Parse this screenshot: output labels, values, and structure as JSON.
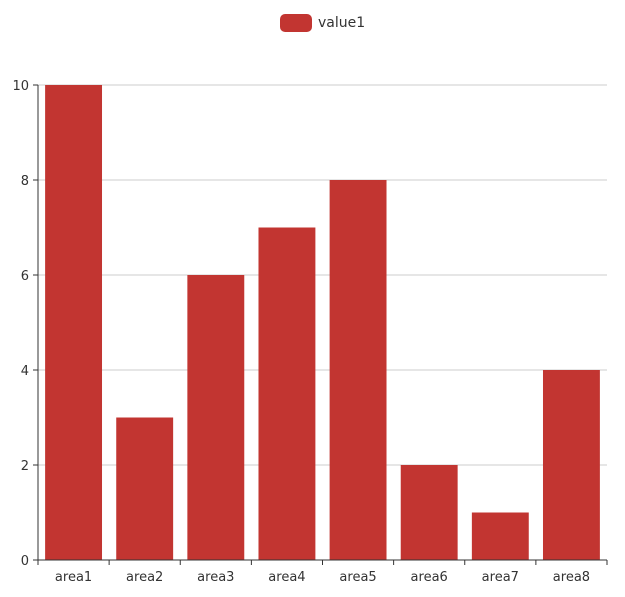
{
  "legend": {
    "label": "value1",
    "color": "#c23531"
  },
  "colors": {
    "bar": "#c23531",
    "axis": "#333333",
    "grid": "#cccccc",
    "tick_text": "#333333"
  },
  "chart_data": {
    "type": "bar",
    "categories": [
      "area1",
      "area2",
      "area3",
      "area4",
      "area5",
      "area6",
      "area7",
      "area8"
    ],
    "series": [
      {
        "name": "value1",
        "values": [
          10,
          3,
          6,
          7,
          8,
          2,
          1,
          4
        ]
      }
    ],
    "ylim": [
      0,
      10
    ],
    "yticks": [
      0,
      2,
      4,
      6,
      8,
      10
    ],
    "grid": true,
    "legend_position": "top-center",
    "title": "",
    "xlabel": "",
    "ylabel": ""
  }
}
